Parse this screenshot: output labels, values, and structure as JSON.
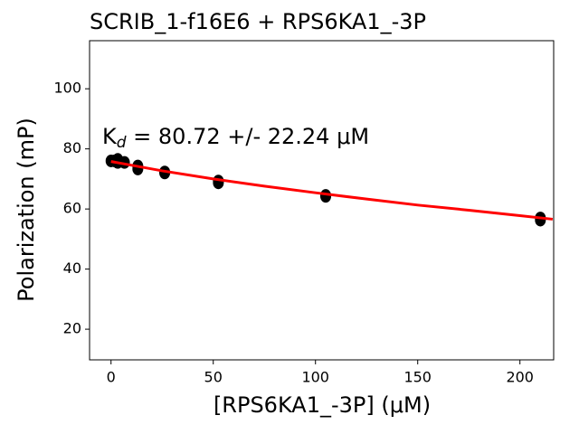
{
  "chart_data": {
    "type": "scatter",
    "title": "SCRIB_1-f16E6 + RPS6KA1_-3P",
    "x_label": "[RPS6KA1_-3P] (μM)",
    "y_label": "Polarization (mP)",
    "annotation": {
      "main": "K",
      "subscript": "d",
      "rest": " = 80.72 +/- 22.24 μM"
    },
    "xlim": [
      -10.5,
      216.5
    ],
    "ylim": [
      9.8,
      116
    ],
    "xticks": [
      0,
      50,
      100,
      150,
      200
    ],
    "yticks": [
      20,
      40,
      60,
      80,
      100
    ],
    "series": [
      {
        "type": "scatter",
        "color": "#000000",
        "x": [
          0,
          1.64,
          3.28,
          3.28,
          6.56,
          13.1,
          13.1,
          26.25,
          26.25,
          52.5,
          52.5,
          105,
          105,
          210,
          210
        ],
        "values": [
          76,
          76,
          76.5,
          75.5,
          75.5,
          74.3,
          73.3,
          72.3,
          72,
          69.3,
          68.7,
          64.5,
          64.2,
          57,
          56.3
        ]
      },
      {
        "type": "line",
        "color": "#ff0000",
        "x": [
          0,
          25,
          50,
          75,
          100,
          125,
          150,
          175,
          200,
          216
        ],
        "values": [
          75.8,
          72.7,
          70.0,
          67.6,
          65.4,
          63.3,
          61.3,
          59.6,
          57.8,
          56.6
        ]
      }
    ]
  }
}
